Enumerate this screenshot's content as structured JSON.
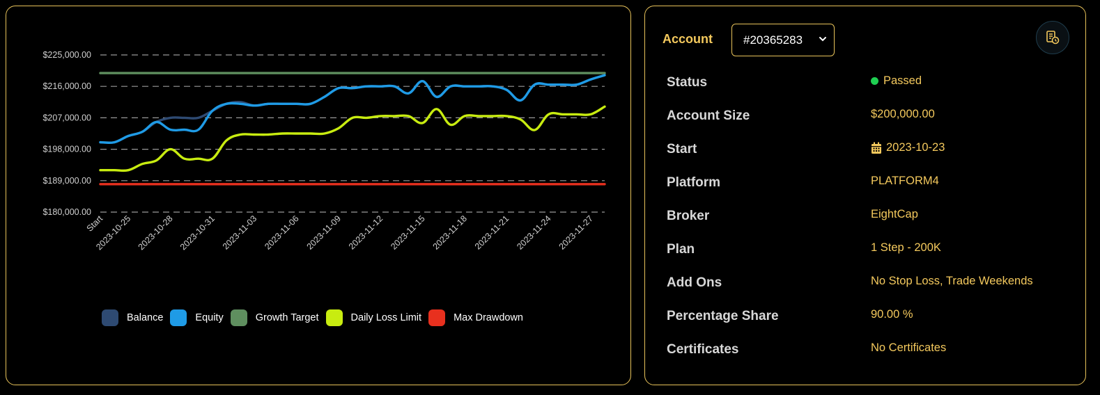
{
  "colors": {
    "accent": "#f4c95d",
    "balance": "#2e4a72",
    "equity": "#1f9be6",
    "growth_target": "#5f8f5f",
    "daily_loss_limit": "#c8ec10",
    "max_drawdown": "#e8301e",
    "status_green": "#1fcf52"
  },
  "legend": [
    {
      "label": "Balance",
      "color": "#2e4a72"
    },
    {
      "label": "Equity",
      "color": "#1f9be6"
    },
    {
      "label": "Growth Target",
      "color": "#5f8f5f"
    },
    {
      "label": "Daily Loss Limit",
      "color": "#c8ec10"
    },
    {
      "label": "Max Drawdown",
      "color": "#e8301e"
    }
  ],
  "chart_data": {
    "type": "line",
    "grid": "horizontal dashed",
    "legend_position": "bottom",
    "ylim": [
      180000,
      225000
    ],
    "y_ticks": [
      "$225,000.00",
      "$216,000.00",
      "$207,000.00",
      "$198,000.00",
      "$189,000.00",
      "$180,000.00"
    ],
    "y_tick_values": [
      225000,
      216000,
      207000,
      198000,
      189000,
      180000
    ],
    "x_ticks": [
      "Start",
      "2023-10-25",
      "2023-10-28",
      "2023-10-31",
      "2023-11-03",
      "2023-11-06",
      "2023-11-09",
      "2023-11-12",
      "2023-11-15",
      "2023-11-18",
      "2023-11-21",
      "2023-11-24",
      "2023-11-27"
    ],
    "x_tick_index": [
      0,
      2,
      5,
      8,
      11,
      14,
      17,
      20,
      23,
      26,
      29,
      32,
      35
    ],
    "n_points": 37,
    "series": [
      {
        "name": "Balance",
        "color": "#2e4a72",
        "values": [
          200000,
          200000,
          201800,
          203000,
          205800,
          207000,
          207000,
          207000,
          209000,
          211000,
          211500,
          210500,
          211000,
          211000,
          211000,
          211000,
          213000,
          215500,
          215500,
          216000,
          216000,
          216000,
          214000,
          217500,
          213000,
          216000,
          216000,
          216000,
          216000,
          215000,
          212000,
          216500,
          216500,
          216500,
          216500,
          218000,
          219200
        ]
      },
      {
        "name": "Equity",
        "color": "#1f9be6",
        "values": [
          200000,
          200000,
          201800,
          203000,
          205800,
          203600,
          203600,
          203600,
          209000,
          211000,
          211000,
          210500,
          211000,
          211000,
          211000,
          211000,
          213000,
          215500,
          215500,
          216000,
          216000,
          216000,
          214000,
          217500,
          213000,
          216000,
          216000,
          216000,
          216000,
          215000,
          212000,
          216500,
          216500,
          216500,
          216500,
          218000,
          219200
        ]
      },
      {
        "name": "Growth Target",
        "color": "#5f8f5f",
        "values": [
          219800,
          219800,
          219800,
          219800,
          219800,
          219800,
          219800,
          219800,
          219800,
          219800,
          219800,
          219800,
          219800,
          219800,
          219800,
          219800,
          219800,
          219800,
          219800,
          219800,
          219800,
          219800,
          219800,
          219800,
          219800,
          219800,
          219800,
          219800,
          219800,
          219800,
          219800,
          219800,
          219800,
          219800,
          219800,
          219800,
          219800
        ]
      },
      {
        "name": "Daily Loss Limit",
        "color": "#c8ec10",
        "values": [
          192000,
          192000,
          192000,
          193800,
          194800,
          198000,
          195300,
          195300,
          195300,
          200500,
          202200,
          202200,
          202200,
          202500,
          202500,
          202500,
          202500,
          204000,
          207000,
          207000,
          207500,
          207500,
          207500,
          205500,
          209500,
          205000,
          207500,
          207500,
          207500,
          207500,
          206500,
          203500,
          208000,
          208000,
          208000,
          208000,
          210200
        ]
      },
      {
        "name": "Max Drawdown",
        "color": "#e8301e",
        "values": [
          188000,
          188000,
          188000,
          188000,
          188000,
          188000,
          188000,
          188000,
          188000,
          188000,
          188000,
          188000,
          188000,
          188000,
          188000,
          188000,
          188000,
          188000,
          188000,
          188000,
          188000,
          188000,
          188000,
          188000,
          188000,
          188000,
          188000,
          188000,
          188000,
          188000,
          188000,
          188000,
          188000,
          188000,
          188000,
          188000,
          188000
        ]
      }
    ]
  },
  "account": {
    "label": "Account",
    "selected": "#20365283",
    "report_icon": "report-clock-icon"
  },
  "details": [
    {
      "key": "Status",
      "value": "Passed",
      "icon": "status-dot-icon"
    },
    {
      "key": "Account Size",
      "value": "$200,000.00"
    },
    {
      "key": "Start",
      "value": "2023-10-23",
      "icon": "calendar-icon"
    },
    {
      "key": "Platform",
      "value": "PLATFORM4"
    },
    {
      "key": "Broker",
      "value": "EightCap"
    },
    {
      "key": "Plan",
      "value": "1 Step - 200K"
    },
    {
      "key": "Add Ons",
      "value": "No Stop Loss, Trade Weekends"
    },
    {
      "key": "Percentage Share",
      "value": "90.00 %"
    },
    {
      "key": "Certificates",
      "value": "No Certificates"
    }
  ]
}
